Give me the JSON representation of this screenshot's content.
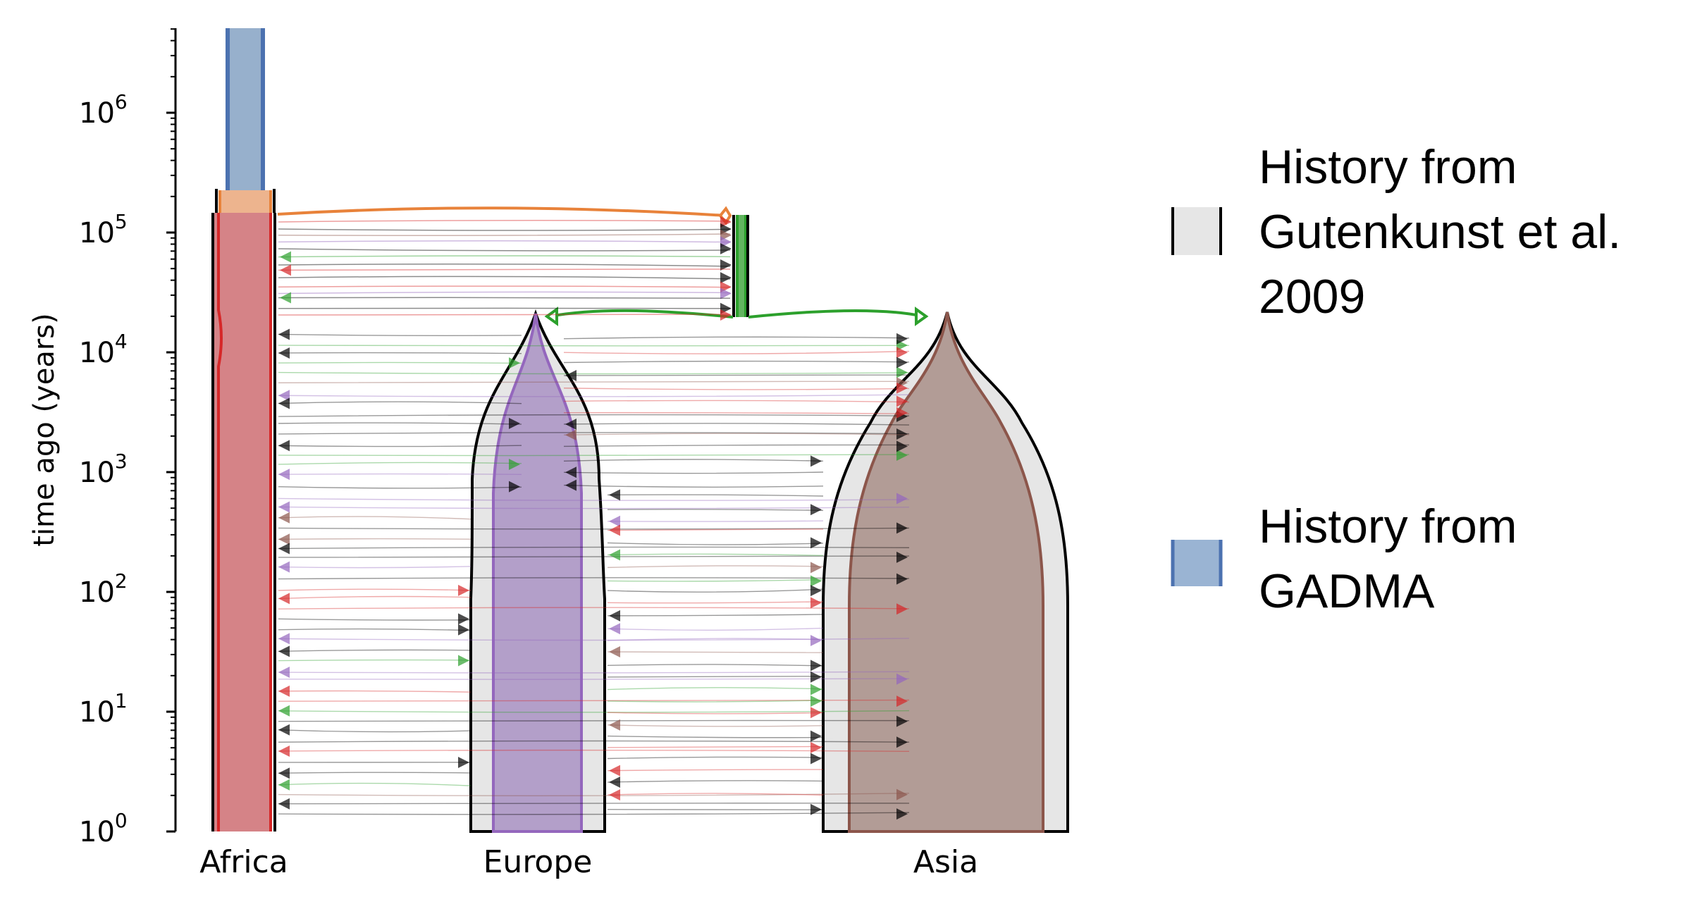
{
  "chart_data": {
    "type": "demes",
    "ylabel": "time ago (years)",
    "yscale": "log",
    "ylim": [
      1,
      5000000
    ],
    "yticks": [
      {
        "value": 1,
        "base": "10",
        "exp": "0"
      },
      {
        "value": 10,
        "base": "10",
        "exp": "1"
      },
      {
        "value": 100,
        "base": "10",
        "exp": "2"
      },
      {
        "value": 1000,
        "base": "10",
        "exp": "3"
      },
      {
        "value": 10000,
        "base": "10",
        "exp": "4"
      },
      {
        "value": 100000,
        "base": "10",
        "exp": "5"
      },
      {
        "value": 1000000,
        "base": "10",
        "exp": "6"
      }
    ],
    "categories": [
      "Africa",
      "Europe",
      "Asia"
    ],
    "splits": [
      {
        "from": "ancestral",
        "to": "out-of-Africa",
        "time": 140000
      },
      {
        "from": "out-of-Africa",
        "to": [
          "Europe",
          "Asia"
        ],
        "time": 20000
      }
    ],
    "colors": {
      "ancestral": "#4c72b0",
      "ancestral_fill": "#97b0cc",
      "split": "#e8823a",
      "split_fill": "#edb48e",
      "africa": "#d62728",
      "africa_fill": "#d58387",
      "ooa": "#2ca02c",
      "europe": "#9467bd",
      "europe_fill": "#b39fc9",
      "asia": "#8c564b",
      "asia_fill": "#b29c96",
      "gutenkunst_fill": "#e6e6e6"
    },
    "legend": {
      "position": "right",
      "items": [
        {
          "label_lines": [
            "History from",
            "Gutenkunst et al.",
            "2009"
          ],
          "style": "gutenkunst"
        },
        {
          "label_lines": [
            "History from",
            "GADMA"
          ],
          "style": "gadma"
        }
      ]
    }
  }
}
